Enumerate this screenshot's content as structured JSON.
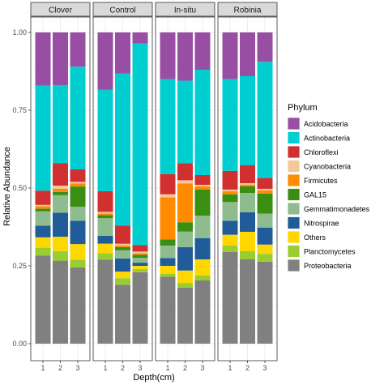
{
  "chart_data": {
    "type": "bar",
    "stacked": true,
    "facets": [
      "Clover",
      "Control",
      "In-situ",
      "Robinia"
    ],
    "categories": [
      "1",
      "2",
      "3"
    ],
    "xlabel": "Depth(cm)",
    "ylabel": "Relative Abundance",
    "ylim": [
      0,
      1
    ],
    "yticks": [
      "0.00",
      "0.25",
      "0.50",
      "0.75",
      "1.00"
    ],
    "legend": {
      "title": "Phylum",
      "position": "right"
    },
    "series": [
      {
        "name": "Acidobacteria",
        "color": "#984EA3"
      },
      {
        "name": "Actinobacteria",
        "color": "#00CED1"
      },
      {
        "name": "Chloroflexi",
        "color": "#D03030"
      },
      {
        "name": "Cyanobacteria",
        "color": "#F4C79A"
      },
      {
        "name": "Firmicutes",
        "color": "#FF8C00"
      },
      {
        "name": "GAL15",
        "color": "#3A8F12"
      },
      {
        "name": "Gemmatimonadetes",
        "color": "#8FBC8F"
      },
      {
        "name": "Nitrospirae",
        "color": "#1F5C99"
      },
      {
        "name": "Others",
        "color": "#FFD700"
      },
      {
        "name": "Planctomycetes",
        "color": "#9ACD32"
      },
      {
        "name": "Proteobacteria",
        "color": "#808080"
      }
    ],
    "values": {
      "Clover": [
        [
          0.205,
          0.405,
          0.055,
          0.005,
          0.01,
          0.01,
          0.055,
          0.045,
          0.04,
          0.03,
          0.34
        ],
        [
          0.165,
          0.245,
          0.07,
          0.01,
          0.01,
          0.01,
          0.055,
          0.075,
          0.045,
          0.03,
          0.26
        ],
        [
          0.11,
          0.33,
          0.04,
          0.005,
          0.01,
          0.065,
          0.045,
          0.075,
          0.05,
          0.025,
          0.245
        ]
      ],
      "Control": [
        [
          0.18,
          0.32,
          0.065,
          0.005,
          0.005,
          0.01,
          0.055,
          0.025,
          0.03,
          0.02,
          0.265
        ],
        [
          0.125,
          0.465,
          0.055,
          0.005,
          0.005,
          0.01,
          0.025,
          0.04,
          0.02,
          0.02,
          0.18
        ],
        [
          0.035,
          0.635,
          0.02,
          0.005,
          0.005,
          0.01,
          0.015,
          0.01,
          0.01,
          0.01,
          0.225
        ]
      ],
      "In-situ": [
        [
          0.15,
          0.305,
          0.065,
          0.01,
          0.135,
          0.02,
          0.04,
          0.025,
          0.025,
          0.01,
          0.215
        ],
        [
          0.155,
          0.265,
          0.055,
          0.01,
          0.125,
          0.03,
          0.05,
          0.075,
          0.04,
          0.015,
          0.18
        ],
        [
          0.115,
          0.325,
          0.03,
          0.005,
          0.01,
          0.08,
          0.07,
          0.065,
          0.05,
          0.015,
          0.195
        ]
      ],
      "Robinia": [
        [
          0.15,
          0.295,
          0.06,
          0.005,
          0.01,
          0.025,
          0.06,
          0.045,
          0.035,
          0.02,
          0.295
        ],
        [
          0.135,
          0.275,
          0.055,
          0.005,
          0.005,
          0.02,
          0.06,
          0.06,
          0.06,
          0.025,
          0.26
        ],
        [
          0.095,
          0.375,
          0.035,
          0.005,
          0.01,
          0.065,
          0.045,
          0.055,
          0.03,
          0.025,
          0.265
        ]
      ]
    }
  }
}
